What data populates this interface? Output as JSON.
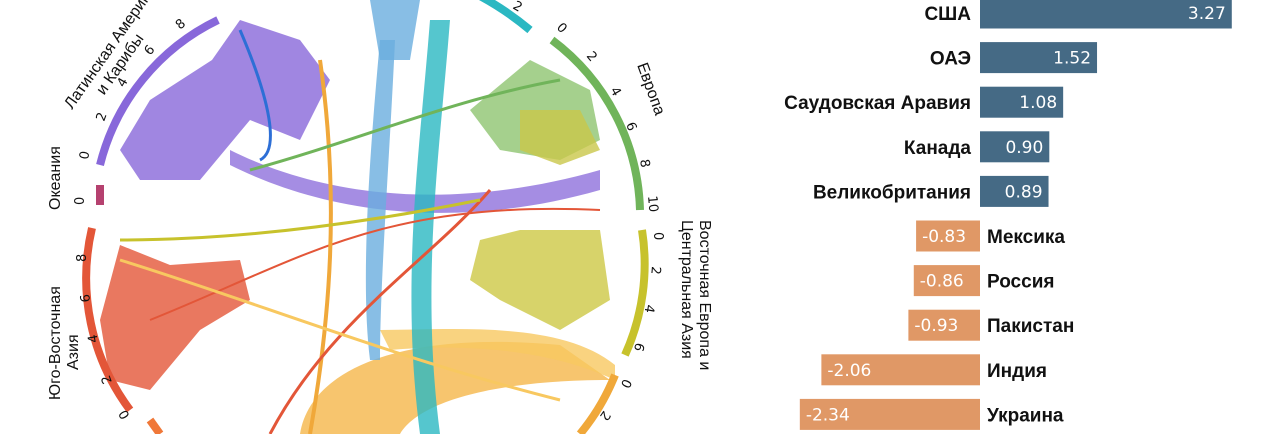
{
  "chord_diagram": {
    "regions": [
      {
        "key": "north-america",
        "label": "",
        "color": "#2d6fd6",
        "ticks": []
      },
      {
        "key": "top-blue",
        "label": "",
        "color": "#6aaede",
        "ticks": []
      },
      {
        "key": "top-teal",
        "label": "",
        "color": "#2bb8c2",
        "ticks": [
          "2"
        ]
      },
      {
        "key": "europe",
        "label": "Европа",
        "color": "#70b45a",
        "ticks": [
          "0",
          "2",
          "4",
          "6",
          "8",
          "10"
        ]
      },
      {
        "key": "eastern-europe-central-asia",
        "label": "Восточная Европа и Центральная Азия",
        "color": "#c7c22c",
        "ticks": [
          "0",
          "2",
          "4",
          "6"
        ]
      },
      {
        "key": "south-asia",
        "label": "",
        "color": "#f0a83a",
        "ticks": [
          "0",
          "2"
        ]
      },
      {
        "key": "southeast-asia",
        "label": "Юго-Восточная Азия",
        "color": "#e35638",
        "ticks": [
          "0",
          "2",
          "4",
          "6",
          "8"
        ]
      },
      {
        "key": "oceania",
        "label": "Океания",
        "color": "#b5416f",
        "ticks": [
          "0"
        ]
      },
      {
        "key": "latin-america",
        "label": "Латинская Америка и Карибы",
        "color": "#8868da",
        "ticks": [
          "0",
          "2",
          "4",
          "6",
          "8"
        ]
      }
    ],
    "label_lines": {
      "latin-america": [
        "Латинская Америка",
        "и Карибы"
      ],
      "eastern-europe-central-asia": [
        "Восточная Европа и",
        "Центральная Азия"
      ],
      "southeast-asia": [
        "Юго-Восточная",
        "Азия"
      ]
    }
  },
  "chart_data": {
    "type": "bar",
    "orientation": "horizontal",
    "categories": [
      "США",
      "ОАЭ",
      "Саудовская Аравия",
      "Канада",
      "Великобритания",
      "Мексика",
      "Россия",
      "Пакистан",
      "Индия",
      "Украина"
    ],
    "values": [
      3.27,
      1.52,
      1.08,
      0.9,
      0.89,
      -0.83,
      -0.86,
      -0.93,
      -2.06,
      -2.34
    ],
    "value_labels": [
      "3.27",
      "1.52",
      "1.08",
      "0.90",
      "0.89",
      "-0.83",
      "-0.86",
      "-0.93",
      "-2.06",
      "-2.34"
    ],
    "positive_color": "#456a85",
    "negative_color": "#e09866",
    "title": "",
    "xlabel": "",
    "ylabel": ""
  }
}
